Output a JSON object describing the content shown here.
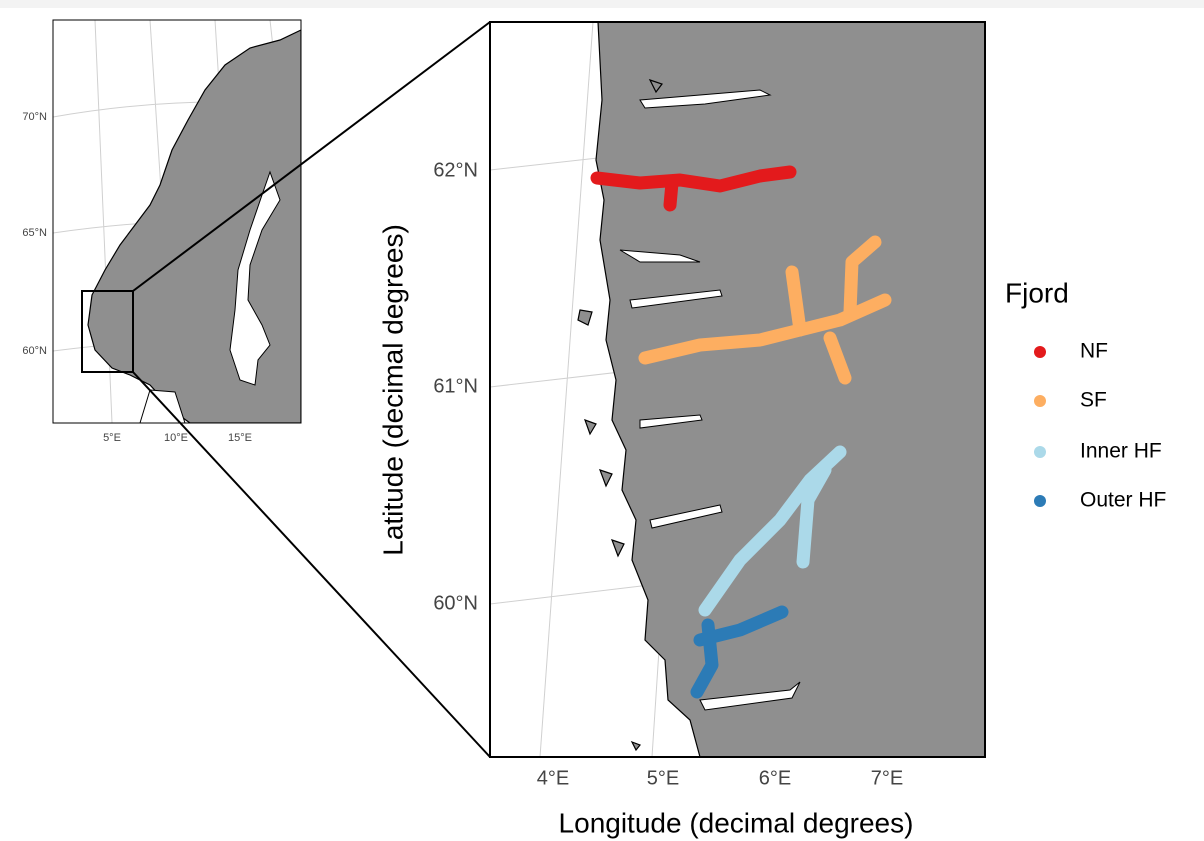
{
  "inset": {
    "yticks": [
      "70°N",
      "65°N",
      "60°N"
    ],
    "xticks": [
      "5°E",
      "10°E",
      "15°E"
    ]
  },
  "main": {
    "yticks": [
      "62°N",
      "61°N",
      "60°N"
    ],
    "xticks": [
      "4°E",
      "5°E",
      "6°E",
      "7°E"
    ],
    "xlabel": "Longitude (decimal degrees)",
    "ylabel": "Latitude (decimal degrees)"
  },
  "legend": {
    "title": "Fjord",
    "items": [
      {
        "name": "NF",
        "color": "#e31a1c"
      },
      {
        "name": "SF",
        "color": "#fdae61"
      },
      {
        "name": "Inner HF",
        "color": "#abd9e9"
      },
      {
        "name": "Outer HF",
        "color": "#2c7bb6"
      }
    ]
  }
}
